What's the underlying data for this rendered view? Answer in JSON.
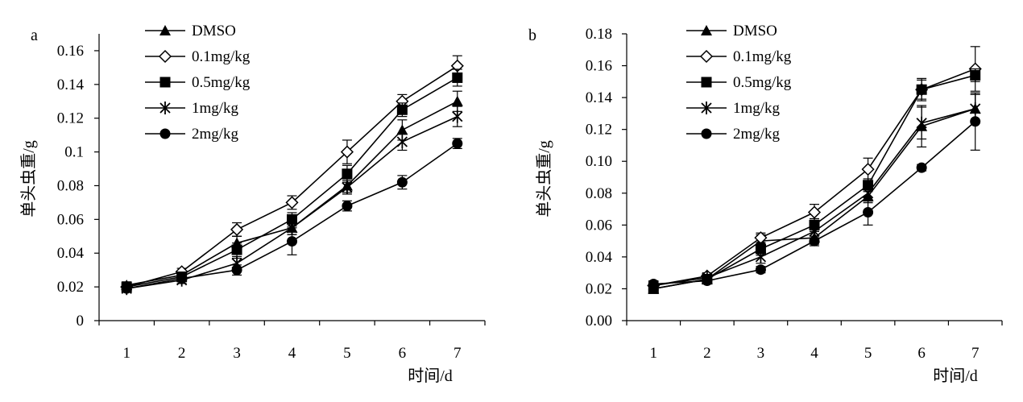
{
  "chart_data": [
    {
      "panel_label": "a",
      "type": "line",
      "xlabel": "时间/d",
      "ylabel": "单头虫重/g",
      "x": [
        1,
        2,
        3,
        4,
        5,
        6,
        7
      ],
      "x_tick_labels": [
        "1",
        "2",
        "3",
        "4",
        "5",
        "6",
        "7"
      ],
      "xlim": [
        0.5,
        7.5
      ],
      "ylim": [
        0,
        0.17
      ],
      "y_tick_values": [
        0,
        0.02,
        0.04,
        0.06,
        0.08,
        0.1,
        0.12,
        0.14,
        0.16
      ],
      "y_tick_labels": [
        "0",
        "0.02",
        "0.04",
        "0.06",
        "0.08",
        "0.1",
        "0.12",
        "0.14",
        "0.16"
      ],
      "grid": false,
      "legend_position": "top-left",
      "series": [
        {
          "name": "DMSO",
          "marker": "triangle",
          "values": [
            0.021,
            0.027,
            0.046,
            0.055,
            0.08,
            0.113,
            0.13
          ],
          "errors": [
            0.002,
            0.002,
            0.004,
            0.004,
            0.004,
            0.006,
            0.006
          ]
        },
        {
          "name": "0.1mg/kg",
          "marker": "diamond-open",
          "values": [
            0.02,
            0.029,
            0.054,
            0.07,
            0.1,
            0.13,
            0.151
          ],
          "errors": [
            0.002,
            0.002,
            0.004,
            0.004,
            0.007,
            0.004,
            0.006
          ]
        },
        {
          "name": "0.5mg/kg",
          "marker": "square",
          "values": [
            0.02,
            0.026,
            0.042,
            0.06,
            0.087,
            0.125,
            0.144
          ],
          "errors": [
            0.002,
            0.002,
            0.004,
            0.004,
            0.005,
            0.004,
            0.005
          ]
        },
        {
          "name": "1mg/kg",
          "marker": "star",
          "values": [
            0.019,
            0.024,
            0.034,
            0.055,
            0.079,
            0.106,
            0.121
          ],
          "errors": [
            0.002,
            0.002,
            0.003,
            0.004,
            0.004,
            0.005,
            0.006
          ]
        },
        {
          "name": "2mg/kg",
          "marker": "circle",
          "values": [
            0.019,
            0.025,
            0.03,
            0.047,
            0.068,
            0.082,
            0.105
          ],
          "errors": [
            0.002,
            0.002,
            0.003,
            0.008,
            0.003,
            0.004,
            0.003
          ]
        }
      ]
    },
    {
      "panel_label": "b",
      "type": "line",
      "xlabel": "时间/d",
      "ylabel": "单头虫重/g",
      "x": [
        1,
        2,
        3,
        4,
        5,
        6,
        7
      ],
      "x_tick_labels": [
        "1",
        "2",
        "3",
        "4",
        "5",
        "6",
        "7"
      ],
      "xlim": [
        0.5,
        7.5
      ],
      "ylim": [
        0,
        0.18
      ],
      "y_tick_values": [
        0,
        0.02,
        0.04,
        0.06,
        0.08,
        0.1,
        0.12,
        0.14,
        0.16,
        0.18
      ],
      "y_tick_labels": [
        "0.00",
        "0.02",
        "0.04",
        "0.06",
        "0.08",
        "0.10",
        "0.12",
        "0.14",
        "0.16",
        "0.18"
      ],
      "grid": false,
      "legend_position": "top-left",
      "series": [
        {
          "name": "DMSO",
          "marker": "triangle",
          "values": [
            0.02,
            0.026,
            0.05,
            0.052,
            0.078,
            0.122,
            0.133
          ],
          "errors": [
            0.002,
            0.002,
            0.004,
            0.004,
            0.004,
            0.013,
            0.009
          ]
        },
        {
          "name": "0.1mg/kg",
          "marker": "diamond-open",
          "values": [
            0.022,
            0.028,
            0.052,
            0.068,
            0.095,
            0.145,
            0.158
          ],
          "errors": [
            0.002,
            0.002,
            0.003,
            0.005,
            0.007,
            0.006,
            0.014
          ]
        },
        {
          "name": "0.5mg/kg",
          "marker": "square",
          "values": [
            0.02,
            0.026,
            0.045,
            0.06,
            0.085,
            0.145,
            0.154
          ],
          "errors": [
            0.002,
            0.002,
            0.004,
            0.004,
            0.004,
            0.007,
            0.004
          ]
        },
        {
          "name": "1mg/kg",
          "marker": "star",
          "values": [
            0.022,
            0.027,
            0.04,
            0.056,
            0.08,
            0.124,
            0.133
          ],
          "errors": [
            0.002,
            0.002,
            0.004,
            0.004,
            0.005,
            0.01,
            0.009
          ]
        },
        {
          "name": "2mg/kg",
          "marker": "circle",
          "values": [
            0.023,
            0.025,
            0.032,
            0.05,
            0.068,
            0.096,
            0.125
          ],
          "errors": [
            0.002,
            0.002,
            0.002,
            0.003,
            0.008,
            0.002,
            0.018
          ]
        }
      ]
    }
  ]
}
